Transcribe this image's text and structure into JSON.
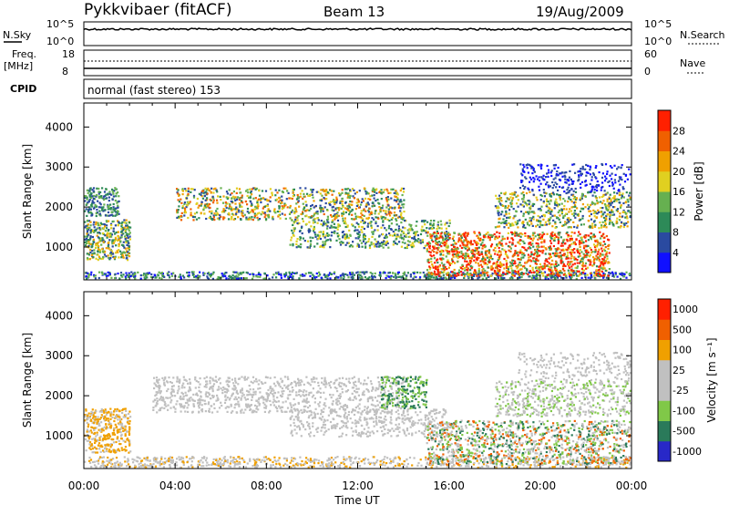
{
  "header": {
    "station": "Pykkvibaer (fitACF)",
    "beam": "Beam 13",
    "date": "19/Aug/2009"
  },
  "noise_panel": {
    "left_label": "N.Sky",
    "right_label": "N.Search",
    "left_ticks": [
      "10^5",
      "10^0"
    ],
    "right_ticks": [
      "10^5",
      "10^0"
    ]
  },
  "freq_panel": {
    "left_label_1": "Freq.",
    "left_label_2": "[MHz]",
    "right_label": "Nave",
    "left_ticks": [
      "18",
      "8"
    ],
    "right_ticks": [
      "60",
      "0"
    ]
  },
  "cpid_panel": {
    "label": "CPID",
    "text": "normal (fast stereo) 153"
  },
  "colors": {
    "power": [
      "#1010ff",
      "#2a4aa0",
      "#2d8a58",
      "#66b050",
      "#e0d020",
      "#f0a000",
      "#f06000",
      "#ff2000"
    ],
    "velocity": [
      "#2828c8",
      "#2a7a5a",
      "#80c848",
      "#c0c0c0",
      "#c0c0c0",
      "#f0a000",
      "#f06000",
      "#ff2000"
    ]
  },
  "chart_data": [
    {
      "type": "heatmap",
      "title": "Power",
      "xlabel": "",
      "ylabel": "Slant Range [km]",
      "ylim": [
        180,
        4600
      ],
      "yticks": [
        "1000",
        "2000",
        "3000",
        "4000"
      ],
      "colorbar": {
        "label": "Power [dB]",
        "ticks": [
          "4",
          "8",
          "12",
          "16",
          "20",
          "24",
          "28"
        ]
      }
    },
    {
      "type": "heatmap",
      "title": "Velocity",
      "xlabel": "Time UT",
      "ylabel": "Slant Range [km]",
      "ylim": [
        180,
        4600
      ],
      "xlim": [
        "00:00",
        "24:00"
      ],
      "xticks": [
        "00:00",
        "04:00",
        "08:00",
        "12:00",
        "16:00",
        "20:00",
        "00:00"
      ],
      "yticks": [
        "1000",
        "2000",
        "3000",
        "4000"
      ],
      "colorbar": {
        "label": "Velocity [m s⁻¹]",
        "ticks": [
          "1000",
          "500",
          "100",
          "25",
          "-25",
          "-100",
          "-500",
          "-1000"
        ]
      }
    }
  ]
}
